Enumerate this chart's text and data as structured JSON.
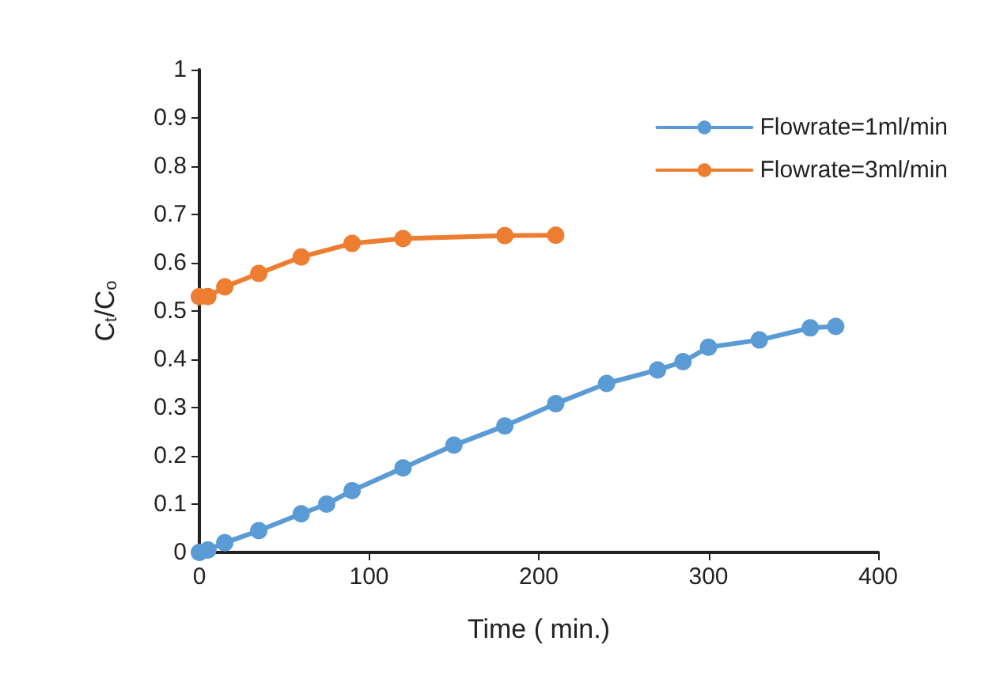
{
  "chart_data": {
    "type": "line",
    "xlabel": "Time ( min.)",
    "ylabel": "C$_{t}$/C$_{o}$",
    "xlim": [
      0,
      400
    ],
    "xticks": [
      0,
      100,
      200,
      300,
      400
    ],
    "ylim": [
      0,
      1
    ],
    "yticks": [
      0,
      0.1,
      0.2,
      0.3,
      0.4,
      0.5,
      0.6,
      0.7,
      0.8,
      0.9,
      1
    ],
    "grid": false,
    "legend": "top right",
    "marker": "circle",
    "line_style": "solid",
    "series": [
      {
        "name": "Flowrate=1ml/min",
        "color": "#5b9bd5",
        "x": [
          0,
          5,
          15,
          35,
          60,
          75,
          90,
          120,
          150,
          180,
          210,
          240,
          270,
          285,
          300,
          330,
          360,
          375
        ],
        "values": [
          0,
          0.005,
          0.02,
          0.045,
          0.08,
          0.1,
          0.128,
          0.175,
          0.222,
          0.262,
          0.308,
          0.35,
          0.378,
          0.395,
          0.425,
          0.44,
          0.465,
          0.468
        ]
      },
      {
        "name": "Flowrate=3ml/min",
        "color": "#ed7d31",
        "x": [
          0,
          5,
          15,
          35,
          60,
          90,
          120,
          180,
          210
        ],
        "values": [
          0.53,
          0.53,
          0.55,
          0.578,
          0.612,
          0.64,
          0.65,
          0.656,
          0.657
        ]
      }
    ]
  }
}
